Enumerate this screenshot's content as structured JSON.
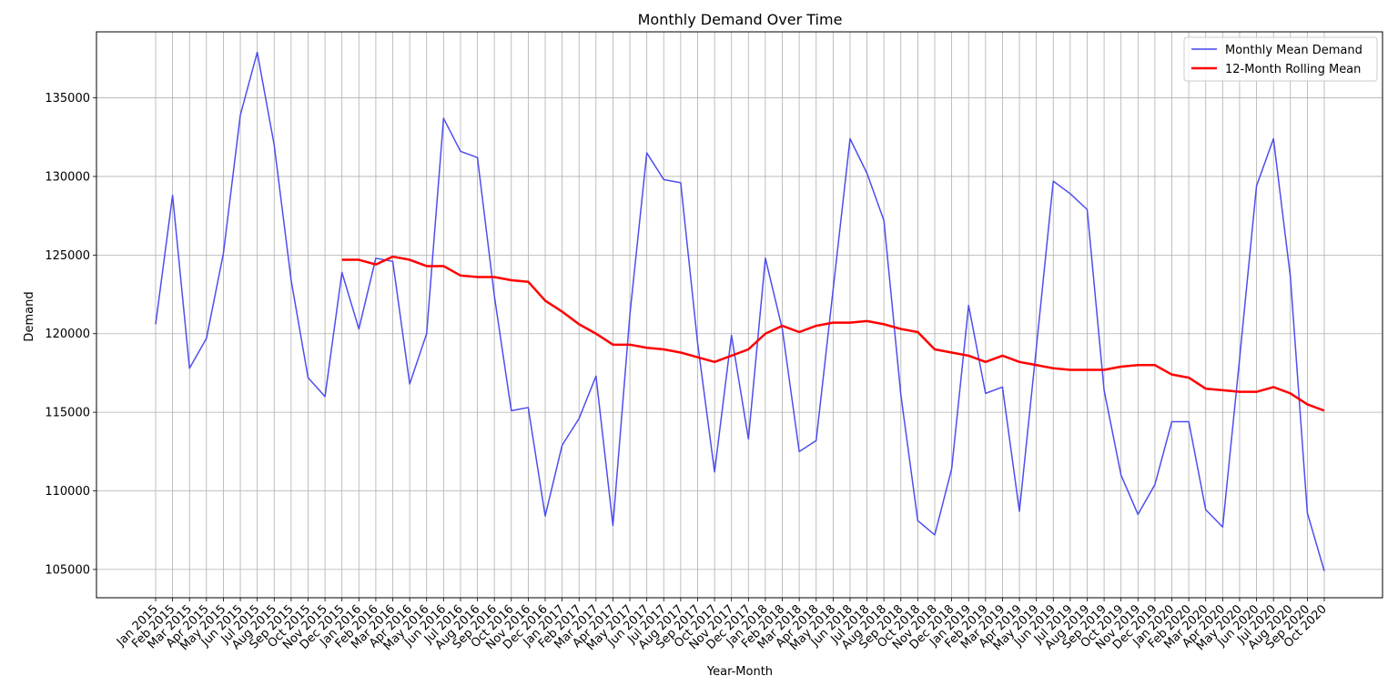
{
  "chart_data": {
    "type": "line",
    "title": "Monthly Demand Over Time",
    "xlabel": "Year-Month",
    "ylabel": "Demand",
    "ylim": [
      103200,
      139200
    ],
    "yticks": [
      105000,
      110000,
      115000,
      120000,
      125000,
      130000,
      135000
    ],
    "grid": true,
    "legend_position": "top-right",
    "x": [
      "Jan 2015",
      "Feb 2015",
      "Mar 2015",
      "Apr 2015",
      "May 2015",
      "Jun 2015",
      "Jul 2015",
      "Aug 2015",
      "Sep 2015",
      "Oct 2015",
      "Nov 2015",
      "Dec 2015",
      "Jan 2016",
      "Feb 2016",
      "Mar 2016",
      "Apr 2016",
      "May 2016",
      "Jun 2016",
      "Jul 2016",
      "Aug 2016",
      "Sep 2016",
      "Oct 2016",
      "Nov 2016",
      "Dec 2016",
      "Jan 2017",
      "Feb 2017",
      "Mar 2017",
      "Apr 2017",
      "May 2017",
      "Jun 2017",
      "Jul 2017",
      "Aug 2017",
      "Sep 2017",
      "Oct 2017",
      "Nov 2017",
      "Dec 2017",
      "Jan 2018",
      "Feb 2018",
      "Mar 2018",
      "Apr 2018",
      "May 2018",
      "Jun 2018",
      "Jul 2018",
      "Aug 2018",
      "Sep 2018",
      "Oct 2018",
      "Nov 2018",
      "Dec 2018",
      "Jan 2019",
      "Feb 2019",
      "Mar 2019",
      "Apr 2019",
      "May 2019",
      "Jun 2019",
      "Jul 2019",
      "Aug 2019",
      "Sep 2019",
      "Oct 2019",
      "Nov 2019",
      "Dec 2019",
      "Jan 2020",
      "Feb 2020",
      "Mar 2020",
      "Apr 2020",
      "May 2020",
      "Jun 2020",
      "Jul 2020",
      "Aug 2020",
      "Sep 2020",
      "Oct 2020"
    ],
    "series": [
      {
        "name": "Monthly Mean Demand",
        "color": "#4444ee",
        "values": [
          120600,
          128800,
          117800,
          119700,
          125100,
          133900,
          137900,
          132000,
          123400,
          117200,
          116000,
          123900,
          120300,
          124800,
          124600,
          116800,
          120000,
          133700,
          131600,
          131200,
          122400,
          115100,
          115300,
          108400,
          112900,
          114600,
          117300,
          107800,
          121200,
          131500,
          129800,
          129600,
          119400,
          111200,
          119900,
          113300,
          124800,
          120300,
          112500,
          113200,
          122800,
          132400,
          130200,
          127200,
          116100,
          108100,
          107200,
          111400,
          121800,
          116200,
          116600,
          108700,
          119100,
          129700,
          128900,
          127900,
          116400,
          111000,
          108500,
          110400,
          114400,
          114400,
          108800,
          107700,
          118400,
          129400,
          132400,
          123600,
          108600,
          104900
        ]
      },
      {
        "name": "12-Month Rolling Mean",
        "color": "#ff0000",
        "values": [
          null,
          null,
          null,
          null,
          null,
          null,
          null,
          null,
          null,
          null,
          null,
          124700,
          124700,
          124400,
          124900,
          124700,
          124300,
          124300,
          123700,
          123600,
          123600,
          123400,
          123300,
          122100,
          121400,
          120600,
          120000,
          119300,
          119300,
          119100,
          119000,
          118800,
          118500,
          118200,
          118600,
          119000,
          120000,
          120500,
          120100,
          120500,
          120700,
          120700,
          120800,
          120600,
          120300,
          120100,
          119000,
          118800,
          118600,
          118200,
          118600,
          118200,
          118000,
          117800,
          117700,
          117700,
          117700,
          117900,
          118000,
          118000,
          117400,
          117200,
          116500,
          116400,
          116300,
          116300,
          116600,
          116200,
          115500,
          115100
        ]
      }
    ]
  }
}
